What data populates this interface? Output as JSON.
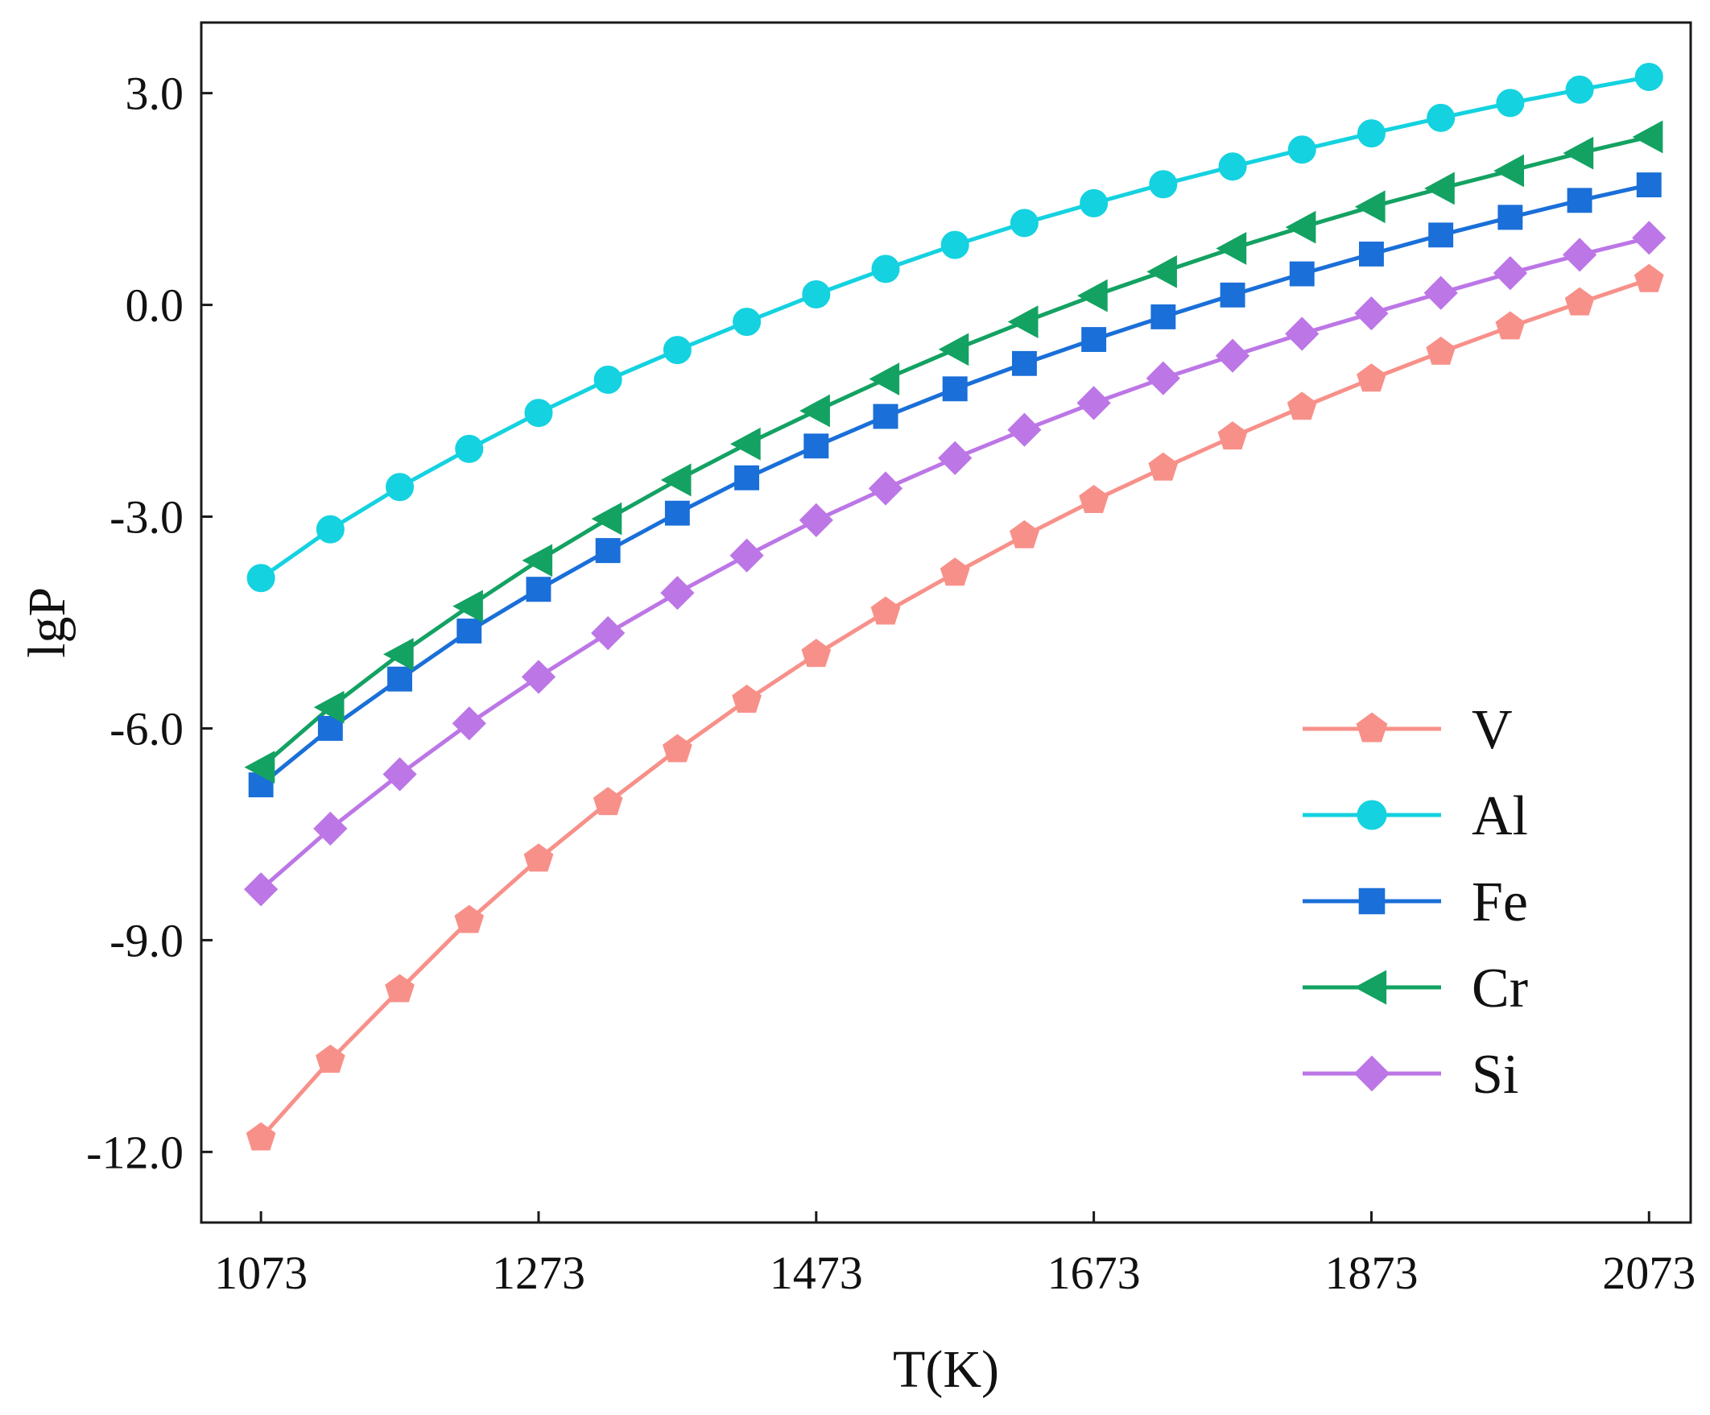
{
  "chart_data": {
    "type": "line",
    "title": "",
    "xlabel": "T(K)",
    "ylabel": "lgP",
    "xlim": [
      1030,
      2103
    ],
    "ylim": [
      -13.0,
      4.0
    ],
    "xticks": [
      1073,
      1273,
      1473,
      1673,
      1873,
      2073
    ],
    "xtick_labels": [
      "1073",
      "1273",
      "1473",
      "1673",
      "1873",
      "2073"
    ],
    "yticks": [
      3.0,
      0.0,
      -3.0,
      -6.0,
      -9.0,
      -12.0
    ],
    "ytick_labels": [
      "3.0",
      "0.0",
      "-3.0",
      "-6.0",
      "-9.0",
      "-12.0"
    ],
    "grid": false,
    "legend_position": "bottom-right",
    "x": [
      1073,
      1123,
      1173,
      1223,
      1273,
      1323,
      1373,
      1423,
      1473,
      1523,
      1573,
      1623,
      1673,
      1723,
      1773,
      1823,
      1873,
      1923,
      1973,
      2023,
      2073
    ],
    "series": [
      {
        "name": "V",
        "color": "#f8908a",
        "marker": "pentagon",
        "values": [
          -11.8,
          -10.7,
          -9.7,
          -8.72,
          -7.85,
          -7.05,
          -6.3,
          -5.6,
          -4.95,
          -4.35,
          -3.8,
          -3.27,
          -2.77,
          -2.31,
          -1.87,
          -1.45,
          -1.05,
          -0.67,
          -0.31,
          0.03,
          0.36
        ]
      },
      {
        "name": "Al",
        "color": "#14d2e0",
        "marker": "circle",
        "values": [
          -3.87,
          -3.18,
          -2.58,
          -2.04,
          -1.53,
          -1.06,
          -0.64,
          -0.24,
          0.15,
          0.51,
          0.85,
          1.16,
          1.44,
          1.71,
          1.96,
          2.2,
          2.43,
          2.65,
          2.86,
          3.05,
          3.23
        ]
      },
      {
        "name": "Fe",
        "color": "#1a6fd8",
        "marker": "square",
        "values": [
          -6.8,
          -6.0,
          -5.3,
          -4.62,
          -4.03,
          -3.48,
          -2.95,
          -2.45,
          -2.0,
          -1.58,
          -1.19,
          -0.83,
          -0.49,
          -0.17,
          0.14,
          0.44,
          0.72,
          0.99,
          1.24,
          1.48,
          1.7
        ]
      },
      {
        "name": "Cr",
        "color": "#13a262",
        "marker": "triangle-left",
        "values": [
          -6.55,
          -5.7,
          -4.95,
          -4.27,
          -3.62,
          -3.03,
          -2.48,
          -1.97,
          -1.5,
          -1.05,
          -0.63,
          -0.24,
          0.13,
          0.47,
          0.8,
          1.1,
          1.39,
          1.65,
          1.9,
          2.15,
          2.38
        ]
      },
      {
        "name": "Si",
        "color": "#bc76e6",
        "marker": "diamond",
        "values": [
          -8.28,
          -7.42,
          -6.65,
          -5.93,
          -5.27,
          -4.65,
          -4.08,
          -3.55,
          -3.05,
          -2.6,
          -2.17,
          -1.77,
          -1.39,
          -1.04,
          -0.72,
          -0.41,
          -0.12,
          0.17,
          0.45,
          0.71,
          0.95
        ]
      }
    ]
  }
}
